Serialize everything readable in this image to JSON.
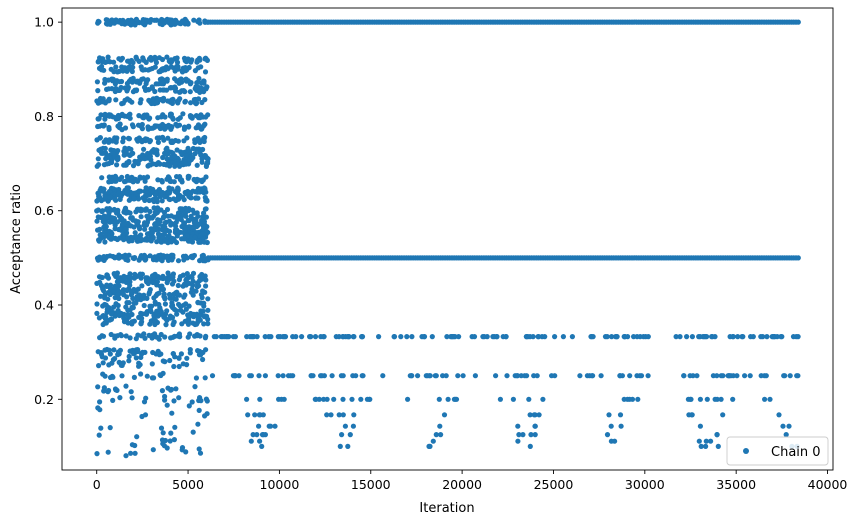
{
  "chart_data": {
    "type": "scatter",
    "xlabel": "Iteration",
    "ylabel": "Acceptance ratio",
    "xlim": [
      -1900,
      40300
    ],
    "ylim": [
      0.05,
      1.03
    ],
    "x_ticks": [
      0,
      5000,
      10000,
      15000,
      20000,
      25000,
      30000,
      35000,
      40000
    ],
    "y_ticks": [
      0.2,
      0.4,
      0.6,
      0.8,
      1.0
    ],
    "x_tick_labels": [
      "0",
      "5000",
      "10000",
      "15000",
      "20000",
      "25000",
      "30000",
      "35000",
      "40000"
    ],
    "y_tick_labels": [
      "0.2",
      "0.4",
      "0.6",
      "0.8",
      "1.0"
    ],
    "legend": {
      "position": "lower-right",
      "entries": [
        "Chain 0"
      ]
    },
    "grid": false,
    "series": [
      {
        "name": "Chain 0",
        "color": "#1f77b4",
        "marker": "dot",
        "segments": [
          {
            "x_start": 0,
            "x_end": 6100,
            "levels": [
              1.0,
              0.9,
              0.92,
              0.875,
              0.857,
              0.833,
              0.8,
              0.778,
              0.75,
              0.727,
              0.714,
              0.7,
              0.667,
              0.643,
              0.636,
              0.625,
              0.6,
              0.583,
              0.571,
              0.556,
              0.545,
              0.538,
              0.5,
              0.462,
              0.455,
              0.444,
              0.429,
              0.417,
              0.4,
              0.385,
              0.375,
              0.364,
              0.333,
              0.3,
              0.286,
              0.273,
              0.25,
              0.222,
              0.2,
              0.182,
              0.167,
              0.143,
              0.125,
              0.111,
              0.1,
              0.091,
              0.083
            ]
          },
          {
            "x_start": 6100,
            "x_end": 38400,
            "levels": [
              1.0,
              0.5,
              0.333,
              0.25,
              0.2,
              0.167,
              0.143,
              0.125,
              0.111,
              0.1
            ]
          }
        ]
      }
    ]
  }
}
